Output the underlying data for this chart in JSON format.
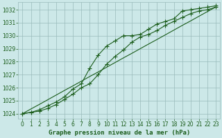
{
  "title": "Graphe pression niveau de la mer (hPa)",
  "bg_color": "#cce8e8",
  "line_color": "#1a5c1a",
  "grid_color": "#99bbbb",
  "x_values": [
    0,
    1,
    2,
    3,
    4,
    5,
    6,
    7,
    8,
    9,
    10,
    11,
    12,
    13,
    14,
    15,
    16,
    17,
    18,
    19,
    20,
    21,
    22,
    23
  ],
  "line1": [
    1024.0,
    1024.1,
    1024.2,
    1024.4,
    1024.7,
    1025.1,
    1025.5,
    1026.0,
    1026.3,
    1027.0,
    1027.8,
    1028.4,
    1028.9,
    1029.5,
    1029.9,
    1030.1,
    1030.4,
    1030.8,
    1031.1,
    1031.4,
    1031.7,
    1031.9,
    1032.0,
    1032.2
  ],
  "line2": [
    1024.0,
    1024.1,
    1024.3,
    1024.6,
    1024.9,
    1025.3,
    1025.9,
    1026.3,
    1027.5,
    1028.5,
    1029.2,
    1029.6,
    1030.0,
    1030.0,
    1030.1,
    1030.5,
    1030.9,
    1031.1,
    1031.3,
    1031.9,
    1032.0,
    1032.1,
    1032.2,
    1032.3
  ],
  "line_straight": [
    1024.0,
    1024.36,
    1024.71,
    1025.07,
    1025.43,
    1025.79,
    1026.14,
    1026.5,
    1026.86,
    1027.21,
    1027.57,
    1027.93,
    1028.29,
    1028.64,
    1029.0,
    1029.36,
    1029.71,
    1030.07,
    1030.43,
    1030.79,
    1031.14,
    1031.5,
    1031.86,
    1032.21
  ],
  "ylim": [
    1023.6,
    1032.6
  ],
  "yticks": [
    1024,
    1025,
    1026,
    1027,
    1028,
    1029,
    1030,
    1031,
    1032
  ],
  "xlim": [
    -0.5,
    23.5
  ],
  "xticks": [
    0,
    1,
    2,
    3,
    4,
    5,
    6,
    7,
    8,
    9,
    10,
    11,
    12,
    13,
    14,
    15,
    16,
    17,
    18,
    19,
    20,
    21,
    22,
    23
  ],
  "tick_fontsize": 5.5,
  "title_fontsize": 6.5,
  "marker": "+",
  "marker_size": 4.0,
  "linewidth": 0.8,
  "figsize": [
    3.2,
    2.0
  ],
  "dpi": 100
}
